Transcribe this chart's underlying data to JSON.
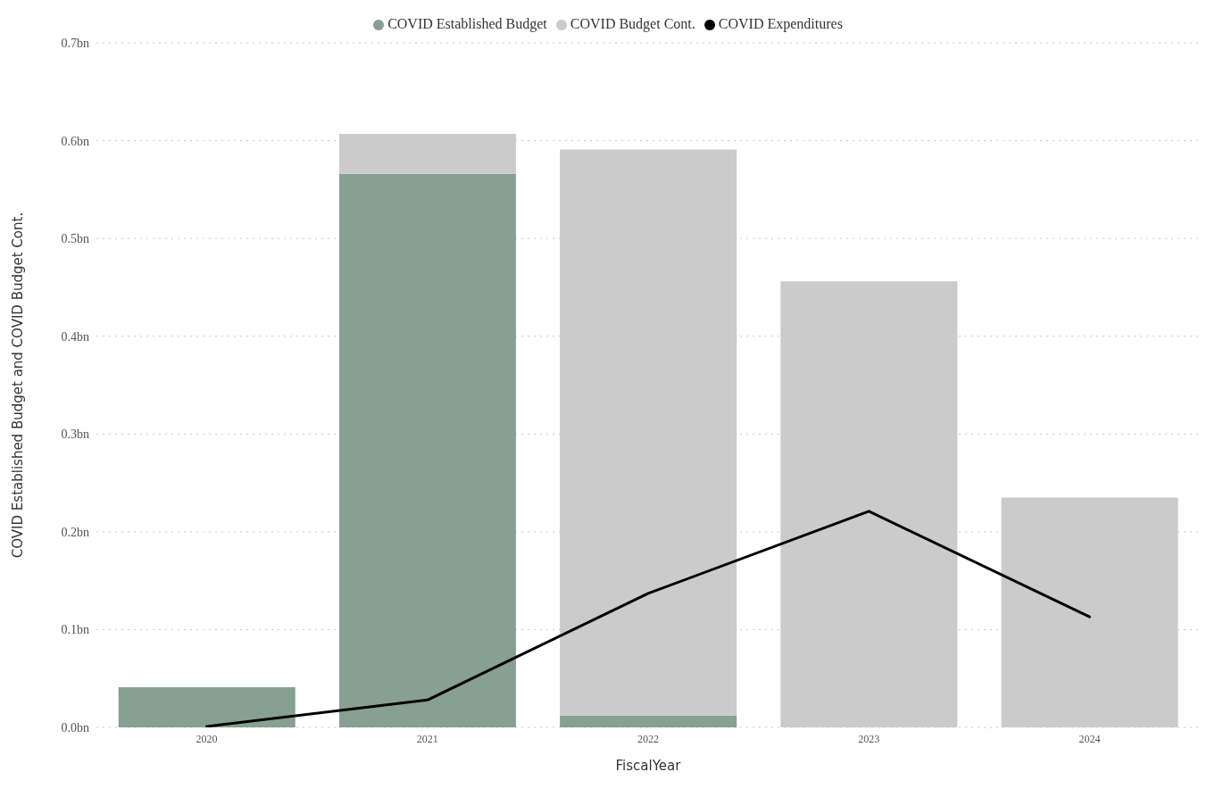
{
  "chart_data": {
    "type": "bar",
    "stacked": true,
    "xlabel": "FiscalYear",
    "ylabel": "COVID Established Budget and COVID Budget Cont.",
    "categories": [
      "2020",
      "2021",
      "2022",
      "2023",
      "2024"
    ],
    "series": [
      {
        "name": "COVID Established Budget",
        "color": "#86a091",
        "values": [
          0.041,
          0.566,
          0.012,
          0,
          0
        ]
      },
      {
        "name": "COVID Budget Cont.",
        "color": "#cbcbcb",
        "values": [
          0,
          0.041,
          0.579,
          0.456,
          0.235
        ]
      },
      {
        "name": "COVID Expenditures",
        "type": "line",
        "color": "#000000",
        "values": [
          0.001,
          0.028,
          0.137,
          0.221,
          0.113
        ]
      }
    ],
    "ylim": [
      0,
      0.7
    ],
    "yticks": [
      {
        "value": 0,
        "label": "0.0bn"
      },
      {
        "value": 0.1,
        "label": "0.1bn"
      },
      {
        "value": 0.2,
        "label": "0.2bn"
      },
      {
        "value": 0.3,
        "label": "0.3bn"
      },
      {
        "value": 0.4,
        "label": "0.4bn"
      },
      {
        "value": 0.5,
        "label": "0.5bn"
      },
      {
        "value": 0.6,
        "label": "0.6bn"
      },
      {
        "value": 0.7,
        "label": "0.7bn"
      }
    ],
    "grid": "y",
    "legend": "top",
    "marker": "none"
  }
}
